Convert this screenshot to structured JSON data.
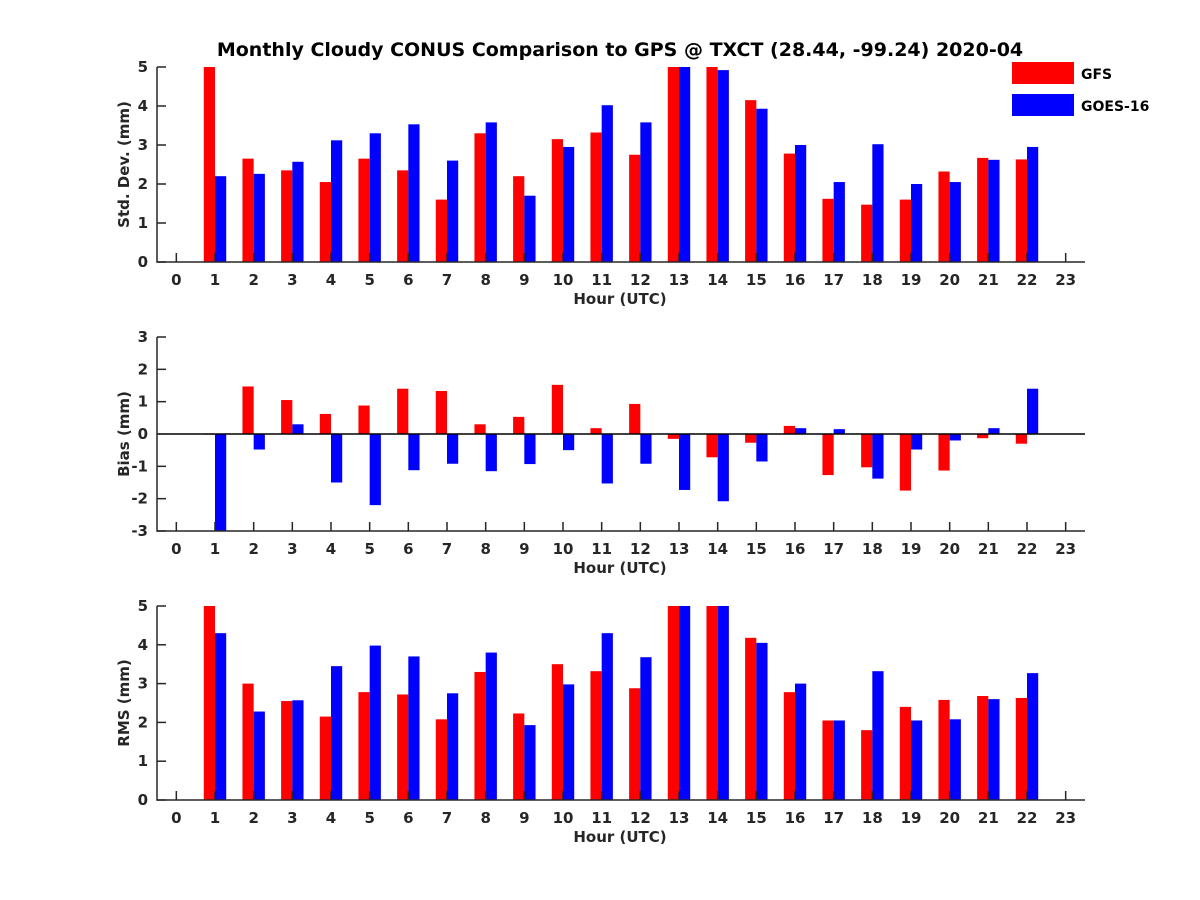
{
  "title": "Monthly Cloudy CONUS Comparison to GPS @ TXCT (28.44, -99.24) 2020-04",
  "legend": {
    "placement": "top-right",
    "entries": [
      {
        "name": "GFS",
        "color": "#ff0000"
      },
      {
        "name": "GOES-16",
        "color": "#0000ff"
      }
    ]
  },
  "chart_data": [
    {
      "type": "bar",
      "name": "std_dev",
      "xlabel": "Hour (UTC)",
      "ylabel": "Std. Dev. (mm)",
      "xlim": [
        -0.5,
        23.5
      ],
      "ylim": [
        0,
        5
      ],
      "xticks": [
        0,
        1,
        2,
        3,
        4,
        5,
        6,
        7,
        8,
        9,
        10,
        11,
        12,
        13,
        14,
        15,
        16,
        17,
        18,
        19,
        20,
        21,
        22,
        23
      ],
      "yticks": [
        0,
        1,
        2,
        3,
        4,
        5
      ],
      "x": [
        1,
        2,
        3,
        4,
        5,
        6,
        7,
        8,
        9,
        10,
        11,
        12,
        13,
        14,
        15,
        16,
        17,
        18,
        19,
        20,
        21,
        22
      ],
      "series": [
        {
          "name": "GFS",
          "color": "#ff0000",
          "values": [
            5.0,
            2.65,
            2.35,
            2.05,
            2.65,
            2.35,
            1.6,
            3.3,
            2.2,
            3.15,
            3.32,
            2.75,
            5.0,
            5.0,
            4.15,
            2.78,
            1.62,
            1.47,
            1.6,
            2.32,
            2.67,
            2.63
          ]
        },
        {
          "name": "GOES-16",
          "color": "#0000ff",
          "values": [
            2.2,
            2.26,
            2.57,
            3.12,
            3.3,
            3.53,
            2.6,
            3.58,
            1.7,
            2.95,
            4.02,
            3.58,
            5.0,
            4.92,
            3.93,
            3.0,
            2.05,
            3.02,
            2.0,
            2.05,
            2.62,
            2.95
          ]
        }
      ]
    },
    {
      "type": "bar",
      "name": "bias",
      "xlabel": "Hour (UTC)",
      "ylabel": "Bias (mm)",
      "xlim": [
        -0.5,
        23.5
      ],
      "ylim": [
        -3,
        3
      ],
      "xticks": [
        0,
        1,
        2,
        3,
        4,
        5,
        6,
        7,
        8,
        9,
        10,
        11,
        12,
        13,
        14,
        15,
        16,
        17,
        18,
        19,
        20,
        21,
        22,
        23
      ],
      "yticks": [
        -3,
        -2,
        -1,
        0,
        1,
        2,
        3
      ],
      "zero_line": true,
      "x": [
        1,
        2,
        3,
        4,
        5,
        6,
        7,
        8,
        9,
        10,
        11,
        12,
        13,
        14,
        15,
        16,
        17,
        18,
        19,
        20,
        21,
        22
      ],
      "series": [
        {
          "name": "GFS",
          "color": "#ff0000",
          "values": [
            -0.02,
            1.47,
            1.05,
            0.62,
            0.88,
            1.4,
            1.33,
            0.3,
            0.53,
            1.52,
            0.18,
            0.93,
            -0.15,
            -0.72,
            -0.27,
            0.25,
            -1.27,
            -1.03,
            -1.75,
            -1.13,
            -0.13,
            -0.3
          ]
        },
        {
          "name": "GOES-16",
          "color": "#0000ff",
          "values": [
            -3.0,
            -0.48,
            0.3,
            -1.5,
            -2.2,
            -1.12,
            -0.92,
            -1.15,
            -0.93,
            -0.5,
            -1.53,
            -0.92,
            -1.73,
            -2.08,
            -0.85,
            0.18,
            0.15,
            -1.38,
            -0.48,
            -0.2,
            0.18,
            1.4
          ]
        }
      ]
    },
    {
      "type": "bar",
      "name": "rms",
      "xlabel": "Hour (UTC)",
      "ylabel": "RMS (mm)",
      "xlim": [
        -0.5,
        23.5
      ],
      "ylim": [
        0,
        5
      ],
      "xticks": [
        0,
        1,
        2,
        3,
        4,
        5,
        6,
        7,
        8,
        9,
        10,
        11,
        12,
        13,
        14,
        15,
        16,
        17,
        18,
        19,
        20,
        21,
        22,
        23
      ],
      "yticks": [
        0,
        1,
        2,
        3,
        4,
        5
      ],
      "x": [
        1,
        2,
        3,
        4,
        5,
        6,
        7,
        8,
        9,
        10,
        11,
        12,
        13,
        14,
        15,
        16,
        17,
        18,
        19,
        20,
        21,
        22
      ],
      "series": [
        {
          "name": "GFS",
          "color": "#ff0000",
          "values": [
            5.0,
            3.0,
            2.55,
            2.15,
            2.78,
            2.72,
            2.08,
            3.3,
            2.23,
            3.5,
            3.32,
            2.88,
            5.0,
            5.0,
            4.18,
            2.78,
            2.05,
            1.8,
            2.4,
            2.58,
            2.68,
            2.63
          ]
        },
        {
          "name": "GOES-16",
          "color": "#0000ff",
          "values": [
            4.3,
            2.28,
            2.57,
            3.45,
            3.98,
            3.7,
            2.75,
            3.8,
            1.93,
            2.98,
            4.3,
            3.68,
            5.0,
            5.0,
            4.05,
            3.0,
            2.05,
            3.32,
            2.05,
            2.08,
            2.6,
            3.27
          ]
        }
      ]
    }
  ]
}
